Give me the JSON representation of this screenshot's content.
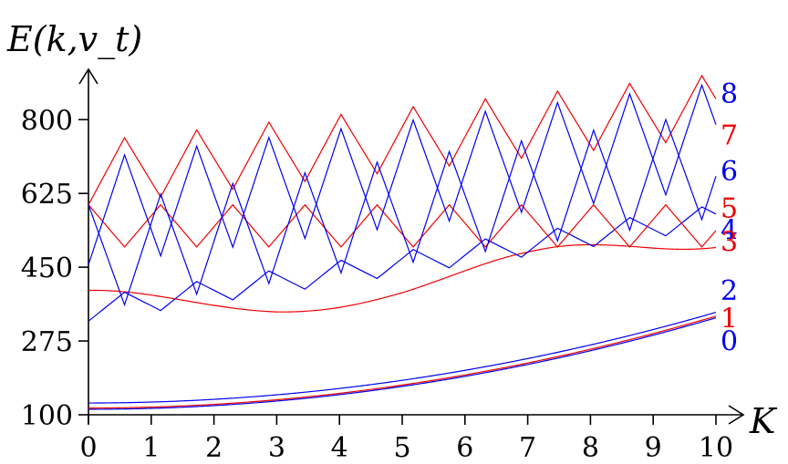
{
  "chart_data": {
    "type": "line",
    "title": "",
    "ylabel": "E(k,v_t)",
    "xlabel": "K",
    "xlim": [
      0,
      10
    ],
    "ylim": [
      100,
      900
    ],
    "x_ticks": [
      0,
      1,
      2,
      3,
      4,
      5,
      6,
      7,
      8,
      9,
      10
    ],
    "y_ticks": [
      100,
      275,
      450,
      625,
      800
    ],
    "grid": false,
    "legend": "none",
    "colors": {
      "even": "#0000ee",
      "odd": "#ee0000"
    },
    "series": [
      {
        "label": "0",
        "color": "#0000ee",
        "kind": "lowband",
        "value_at_0": 113,
        "value_at_10": 330
      },
      {
        "label": "1",
        "color": "#ee0000",
        "kind": "lowband",
        "value_at_0": 116,
        "value_at_10": 334
      },
      {
        "label": "2",
        "color": "#0000ee",
        "kind": "lowband",
        "value_at_0": 128,
        "value_at_10": 343
      },
      {
        "label": "3",
        "color": "#ee0000",
        "kind": "band",
        "low": [
          312,
          321,
          331,
          340,
          352,
          365,
          378,
          400,
          420,
          452,
          490
        ],
        "high": [
          395,
          398,
          402,
          409,
          419,
          433,
          459,
          486,
          518,
          550,
          575
        ]
      },
      {
        "label": "4",
        "color": "#0000ee",
        "kind": "zigzag",
        "start": 322,
        "tilt": 22,
        "amplitude": 56,
        "period": 1.15
      },
      {
        "label": "5",
        "color": "#ee0000",
        "kind": "zigzag",
        "start": 598,
        "tilt": 0,
        "amplitude": 100,
        "period": 1.15,
        "phase": 1
      },
      {
        "label": "6",
        "color": "#0000ee",
        "kind": "zigzag",
        "start": 456,
        "tilt": 18,
        "amplitude": 250,
        "period": 1.15
      },
      {
        "label": "7",
        "color": "#ee0000",
        "kind": "zigzag",
        "start": 598,
        "tilt": 16,
        "amplitude": 150,
        "period": 1.15
      },
      {
        "label": "8",
        "color": "#0000ee",
        "kind": "zigzag",
        "start": 598,
        "tilt": 22,
        "amplitude": 250,
        "period": 1.15,
        "phase": 1
      }
    ],
    "end_labels": [
      {
        "text": "8",
        "color": "#0000ee",
        "y_value": 863
      },
      {
        "text": "7",
        "color": "#ee0000",
        "y_value": 765
      },
      {
        "text": "6",
        "color": "#0000ee",
        "y_value": 680
      },
      {
        "text": "5",
        "color": "#ee0000",
        "y_value": 592
      },
      {
        "text": "4",
        "color": "#0000ee",
        "y_value": 540
      },
      {
        "text": "3",
        "color": "#ee0000",
        "y_value": 512
      },
      {
        "text": "2",
        "color": "#0000ee",
        "y_value": 396
      },
      {
        "text": "1",
        "color": "#ee0000",
        "y_value": 330
      },
      {
        "text": "0",
        "color": "#0000ee",
        "y_value": 276
      }
    ]
  }
}
